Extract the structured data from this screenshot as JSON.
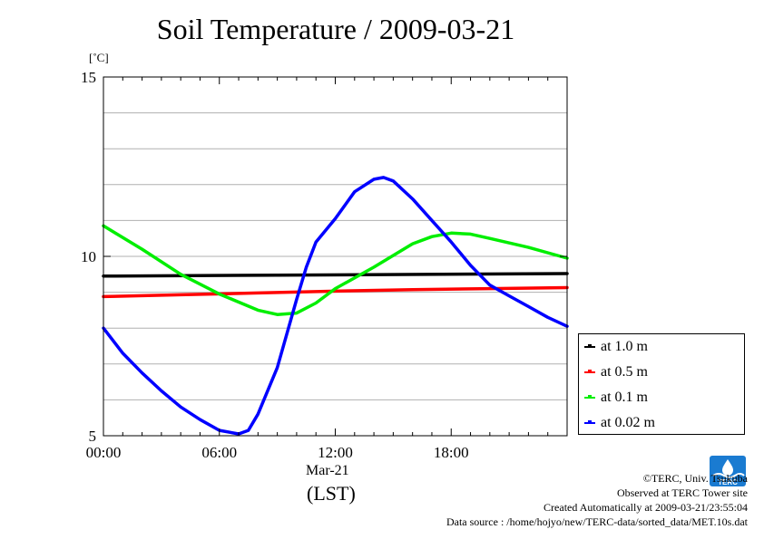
{
  "chart_data": {
    "type": "line",
    "title": "Soil Temperature / 2009-03-21",
    "ylabel": "[˚C]",
    "xlabel": "(LST)",
    "x_date_label": "Mar-21",
    "xlim": [
      0,
      24
    ],
    "ylim": [
      5,
      15
    ],
    "x_ticks": [
      {
        "value": 0,
        "label": "00:00"
      },
      {
        "value": 6,
        "label": "06:00"
      },
      {
        "value": 12,
        "label": "12:00"
      },
      {
        "value": 18,
        "label": "18:00"
      }
    ],
    "y_ticks": [
      {
        "value": 5,
        "label": "5"
      },
      {
        "value": 10,
        "label": "10"
      },
      {
        "value": 15,
        "label": "15"
      }
    ],
    "grid": "horizontal",
    "legend_position": "right",
    "series": [
      {
        "name": "at 1.0 m",
        "color": "#000000",
        "x": [
          0,
          24
        ],
        "y": [
          9.45,
          9.52
        ]
      },
      {
        "name": "at 0.5 m",
        "color": "#ff0000",
        "x": [
          0,
          4,
          8,
          12,
          16,
          20,
          24
        ],
        "y": [
          8.88,
          8.93,
          8.98,
          9.03,
          9.07,
          9.1,
          9.13
        ]
      },
      {
        "name": "at 0.1 m",
        "color": "#00ee00",
        "x": [
          0,
          2,
          4,
          6,
          8,
          9,
          10,
          11,
          12,
          14,
          16,
          17,
          18,
          19,
          20,
          22,
          24
        ],
        "y": [
          10.85,
          10.2,
          9.5,
          8.95,
          8.5,
          8.38,
          8.42,
          8.7,
          9.1,
          9.7,
          10.35,
          10.55,
          10.65,
          10.62,
          10.5,
          10.25,
          9.95
        ]
      },
      {
        "name": "at 0.02 m",
        "color": "#0000ff",
        "x": [
          0,
          1,
          2,
          3,
          4,
          5,
          6,
          7,
          7.5,
          8,
          9,
          10,
          10.5,
          11,
          12,
          13,
          14,
          14.5,
          15,
          16,
          17,
          18,
          19,
          20,
          21,
          22,
          23,
          24
        ],
        "y": [
          8.0,
          7.3,
          6.75,
          6.25,
          5.8,
          5.45,
          5.15,
          5.05,
          5.15,
          5.6,
          6.9,
          8.8,
          9.7,
          10.4,
          11.05,
          11.8,
          12.15,
          12.2,
          12.1,
          11.6,
          11.0,
          10.4,
          9.75,
          9.2,
          8.9,
          8.6,
          8.3,
          8.05
        ]
      }
    ]
  },
  "credits": {
    "line1": "©TERC, Univ. Tsukuba",
    "line2": "Observed at TERC Tower site",
    "line3": "Created Automatically at 2009-03-21/23:55:04",
    "line4": "Data source : /home/hojyo/new/TERC-data/sorted_data/MET.10s.dat"
  },
  "logo": {
    "text": "TERC",
    "color": "#1a7bd1"
  }
}
